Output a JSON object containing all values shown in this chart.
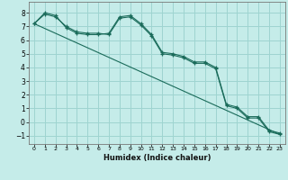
{
  "xlabel": "Humidex (Indice chaleur)",
  "background_color": "#c5ece9",
  "grid_color": "#9ed4d0",
  "line_color": "#1a6b5a",
  "xlim": [
    -0.5,
    23.5
  ],
  "ylim": [
    -1.6,
    8.8
  ],
  "yticks": [
    -1,
    0,
    1,
    2,
    3,
    4,
    5,
    6,
    7,
    8
  ],
  "xticks": [
    0,
    1,
    2,
    3,
    4,
    5,
    6,
    7,
    8,
    9,
    10,
    11,
    12,
    13,
    14,
    15,
    16,
    17,
    18,
    19,
    20,
    21,
    22,
    23
  ],
  "curve1_x": [
    0,
    1,
    2,
    3,
    4,
    5,
    6,
    7,
    8,
    9,
    10,
    11,
    12,
    13,
    14,
    15,
    16,
    17,
    18,
    19,
    20,
    21,
    22,
    23
  ],
  "curve1_y": [
    7.2,
    8.0,
    7.8,
    6.9,
    6.5,
    6.4,
    6.4,
    6.5,
    7.7,
    7.8,
    7.2,
    6.4,
    5.1,
    5.0,
    4.8,
    4.4,
    4.4,
    4.0,
    1.3,
    1.1,
    0.4,
    0.4,
    -0.6,
    -0.8
  ],
  "curve2_x": [
    0,
    1,
    2,
    3,
    4,
    5,
    6,
    7,
    8,
    9,
    10,
    11,
    12,
    13,
    14,
    15,
    16,
    17,
    18,
    19,
    20,
    21,
    22,
    23
  ],
  "curve2_y": [
    7.2,
    7.9,
    7.7,
    7.0,
    6.6,
    6.5,
    6.5,
    6.4,
    7.6,
    7.7,
    7.1,
    6.3,
    5.0,
    4.9,
    4.7,
    4.3,
    4.3,
    3.9,
    1.2,
    1.0,
    0.3,
    0.3,
    -0.7,
    -0.9
  ],
  "line_x": [
    0,
    23
  ],
  "line_y": [
    7.2,
    -0.9
  ]
}
